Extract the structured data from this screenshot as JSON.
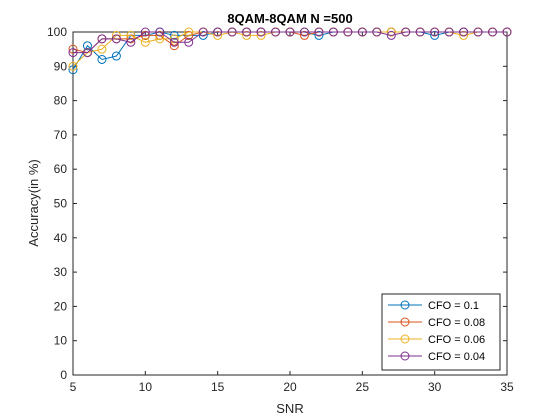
{
  "chart_data": {
    "type": "line",
    "title": "8QAM-8QAM N =500",
    "xlabel": "SNR",
    "ylabel": "Accuracy(in %)",
    "xlim": [
      5,
      35
    ],
    "ylim": [
      0,
      100
    ],
    "xticks": [
      5,
      10,
      15,
      20,
      25,
      30,
      35
    ],
    "yticks": [
      0,
      10,
      20,
      30,
      40,
      50,
      60,
      70,
      80,
      90,
      100
    ],
    "grid": false,
    "legend_position": "bottom-right",
    "x": [
      5,
      6,
      7,
      8,
      9,
      10,
      11,
      12,
      13,
      14,
      15,
      16,
      17,
      18,
      19,
      20,
      21,
      22,
      23,
      24,
      25,
      26,
      27,
      28,
      29,
      30,
      31,
      32,
      33,
      34,
      35
    ],
    "series": [
      {
        "name": "CFO = 0.1",
        "color": "#0072BD",
        "values": [
          89,
          96,
          92,
          93,
          99,
          99,
          100,
          99,
          99,
          99,
          100,
          100,
          100,
          100,
          100,
          100,
          100,
          99,
          100,
          100,
          100,
          100,
          100,
          100,
          100,
          99,
          100,
          100,
          100,
          100,
          100
        ]
      },
      {
        "name": "CFO = 0.08",
        "color": "#D95319",
        "values": [
          95,
          94,
          98,
          98,
          98,
          99,
          99,
          96,
          99,
          100,
          100,
          100,
          100,
          100,
          100,
          100,
          99,
          100,
          100,
          100,
          100,
          100,
          100,
          100,
          100,
          100,
          100,
          100,
          100,
          100,
          100
        ]
      },
      {
        "name": "CFO = 0.06",
        "color": "#EDB120",
        "values": [
          90,
          94,
          95,
          99,
          99,
          97,
          98,
          98,
          100,
          100,
          99,
          100,
          99,
          99,
          100,
          100,
          100,
          100,
          100,
          100,
          100,
          100,
          100,
          100,
          100,
          100,
          100,
          99,
          100,
          100,
          100
        ]
      },
      {
        "name": "CFO = 0.04",
        "color": "#7E2F8E",
        "values": [
          94,
          94,
          98,
          98,
          97,
          100,
          100,
          97,
          97,
          100,
          100,
          100,
          100,
          100,
          100,
          100,
          100,
          100,
          100,
          100,
          100,
          100,
          99,
          100,
          100,
          100,
          100,
          100,
          100,
          100,
          100
        ]
      }
    ]
  }
}
